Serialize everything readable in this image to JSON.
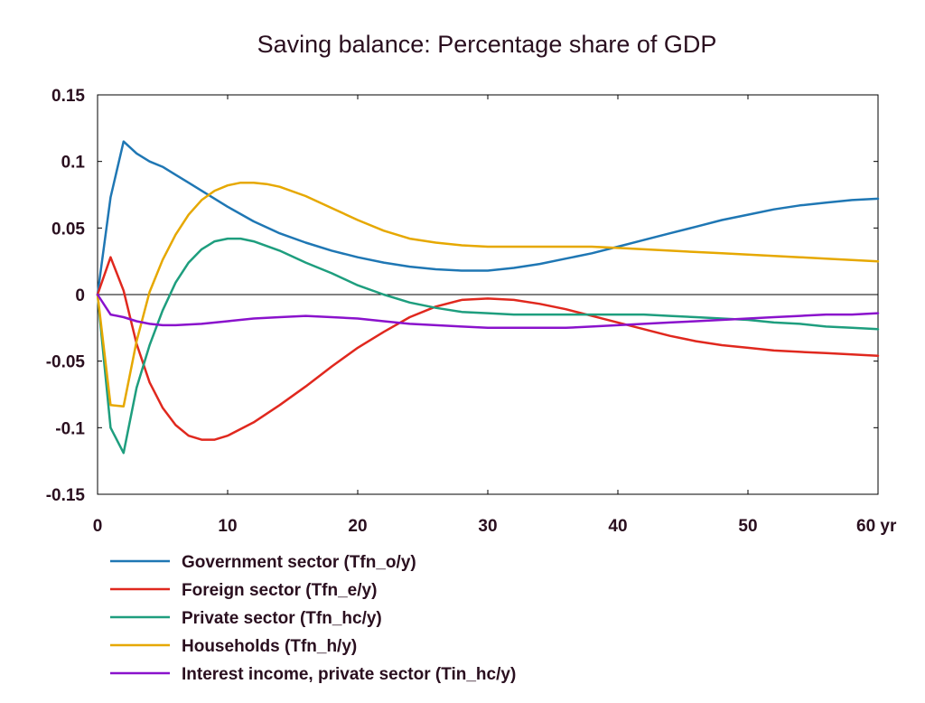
{
  "chart_data": {
    "type": "line",
    "title": "Saving balance: Percentage share of GDP",
    "xlabel": "",
    "ylabel": "",
    "x_unit_label": "yr",
    "xlim": [
      0,
      60
    ],
    "ylim": [
      -0.15,
      0.15
    ],
    "x_ticks": [
      0,
      10,
      20,
      30,
      40,
      50,
      60
    ],
    "x_tick_labels": [
      "0",
      "10",
      "20",
      "30",
      "40",
      "50",
      "60 yr"
    ],
    "y_ticks": [
      0.15,
      0.1,
      0.05,
      0,
      -0.05,
      -0.1,
      -0.15
    ],
    "y_tick_labels": [
      "0.15",
      "0.1",
      "0.05",
      "0",
      "-0.05",
      "-0.1",
      "-0.15"
    ],
    "grid": false,
    "zero_line": true,
    "legend_position": "bottom",
    "series": [
      {
        "name": "Government sector (Tfn_o/y)",
        "color": "#1f77b4",
        "x": [
          0,
          1,
          2,
          3,
          4,
          5,
          6,
          7,
          8,
          10,
          12,
          14,
          16,
          18,
          20,
          22,
          24,
          26,
          28,
          30,
          32,
          34,
          36,
          38,
          40,
          42,
          44,
          46,
          48,
          50,
          52,
          54,
          56,
          58,
          60
        ],
        "y": [
          0,
          0.073,
          0.115,
          0.106,
          0.1,
          0.096,
          0.09,
          0.084,
          0.078,
          0.066,
          0.055,
          0.046,
          0.039,
          0.033,
          0.028,
          0.024,
          0.021,
          0.019,
          0.018,
          0.018,
          0.02,
          0.023,
          0.027,
          0.031,
          0.036,
          0.041,
          0.046,
          0.051,
          0.056,
          0.06,
          0.064,
          0.067,
          0.069,
          0.071,
          0.072
        ]
      },
      {
        "name": "Foreign sector (Tfn_e/y)",
        "color": "#e0281e",
        "x": [
          0,
          1,
          2,
          3,
          4,
          5,
          6,
          7,
          8,
          9,
          10,
          12,
          14,
          16,
          18,
          20,
          22,
          24,
          26,
          28,
          30,
          32,
          34,
          36,
          38,
          40,
          42,
          44,
          46,
          48,
          50,
          52,
          54,
          56,
          58,
          60
        ],
        "y": [
          0,
          0.028,
          0.003,
          -0.037,
          -0.066,
          -0.085,
          -0.098,
          -0.106,
          -0.109,
          -0.109,
          -0.106,
          -0.096,
          -0.083,
          -0.069,
          -0.054,
          -0.04,
          -0.028,
          -0.017,
          -0.009,
          -0.004,
          -0.003,
          -0.004,
          -0.007,
          -0.011,
          -0.016,
          -0.021,
          -0.026,
          -0.031,
          -0.035,
          -0.038,
          -0.04,
          -0.042,
          -0.043,
          -0.044,
          -0.045,
          -0.046
        ]
      },
      {
        "name": "Private sector (Tfn_hc/y)",
        "color": "#1e9e7e",
        "x": [
          0,
          1,
          2,
          3,
          4,
          5,
          6,
          7,
          8,
          9,
          10,
          11,
          12,
          14,
          16,
          18,
          20,
          22,
          24,
          26,
          28,
          30,
          32,
          34,
          36,
          38,
          40,
          42,
          44,
          46,
          48,
          50,
          52,
          54,
          56,
          58,
          60
        ],
        "y": [
          0,
          -0.1,
          -0.119,
          -0.07,
          -0.038,
          -0.012,
          0.009,
          0.024,
          0.034,
          0.04,
          0.042,
          0.042,
          0.04,
          0.033,
          0.024,
          0.016,
          0.007,
          0,
          -0.006,
          -0.01,
          -0.013,
          -0.014,
          -0.015,
          -0.015,
          -0.015,
          -0.015,
          -0.015,
          -0.015,
          -0.016,
          -0.017,
          -0.018,
          -0.019,
          -0.021,
          -0.022,
          -0.024,
          -0.025,
          -0.026
        ]
      },
      {
        "name": "Households (Tfn_h/y)",
        "color": "#e6a800",
        "x": [
          0,
          1,
          2,
          3,
          4,
          5,
          6,
          7,
          8,
          9,
          10,
          11,
          12,
          13,
          14,
          16,
          18,
          20,
          22,
          24,
          26,
          28,
          30,
          32,
          34,
          36,
          38,
          40,
          42,
          44,
          46,
          48,
          50,
          52,
          54,
          56,
          58,
          60
        ],
        "y": [
          0,
          -0.083,
          -0.084,
          -0.035,
          0.002,
          0.026,
          0.045,
          0.06,
          0.071,
          0.078,
          0.082,
          0.084,
          0.084,
          0.083,
          0.081,
          0.074,
          0.065,
          0.056,
          0.048,
          0.042,
          0.039,
          0.037,
          0.036,
          0.036,
          0.036,
          0.036,
          0.036,
          0.035,
          0.034,
          0.033,
          0.032,
          0.031,
          0.03,
          0.029,
          0.028,
          0.027,
          0.026,
          0.025
        ]
      },
      {
        "name": "Interest income, private sector (Tin_hc/y)",
        "color": "#8a12cc",
        "x": [
          0,
          1,
          2,
          3,
          4,
          5,
          6,
          8,
          10,
          12,
          14,
          16,
          18,
          20,
          22,
          24,
          26,
          28,
          30,
          32,
          34,
          36,
          38,
          40,
          42,
          44,
          46,
          48,
          50,
          52,
          54,
          56,
          58,
          60
        ],
        "y": [
          0,
          -0.015,
          -0.017,
          -0.02,
          -0.022,
          -0.023,
          -0.023,
          -0.022,
          -0.02,
          -0.018,
          -0.017,
          -0.016,
          -0.017,
          -0.018,
          -0.02,
          -0.022,
          -0.023,
          -0.024,
          -0.025,
          -0.025,
          -0.025,
          -0.025,
          -0.024,
          -0.023,
          -0.022,
          -0.021,
          -0.02,
          -0.019,
          -0.018,
          -0.017,
          -0.016,
          -0.015,
          -0.015,
          -0.014
        ]
      }
    ]
  }
}
